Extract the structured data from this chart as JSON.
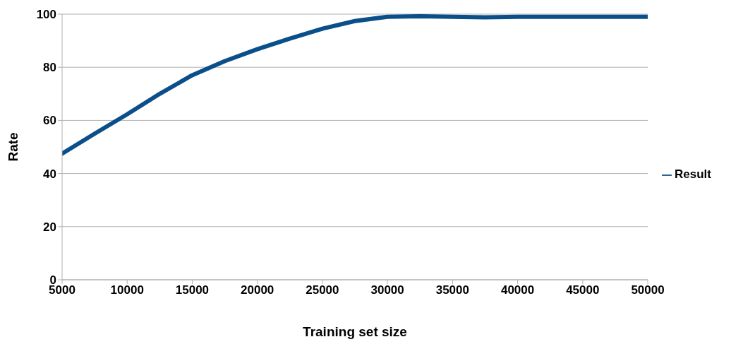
{
  "chart_data": {
    "type": "line",
    "xlabel": "Training set size",
    "ylabel": "Rate",
    "x": [
      5000,
      7500,
      10000,
      12500,
      15000,
      17500,
      20000,
      22500,
      25000,
      27500,
      30000,
      32500,
      35000,
      37500,
      40000,
      45000,
      50000
    ],
    "series": [
      {
        "name": "Result",
        "color": "#0b4f8a",
        "values": [
          47.5,
          55,
          62.3,
          70,
          77,
          82.3,
          86.8,
          90.8,
          94.5,
          97.4,
          99,
          99.2,
          99,
          98.8,
          99,
          99,
          99
        ]
      }
    ],
    "xlim": [
      5000,
      50000
    ],
    "xticks": [
      5000,
      10000,
      15000,
      20000,
      25000,
      30000,
      35000,
      40000,
      45000,
      50000
    ],
    "ylim": [
      0,
      100
    ],
    "yticks": [
      0,
      20,
      40,
      60,
      80,
      100
    ],
    "grid": "y",
    "legend": "right",
    "marker": "none",
    "line_style": "solid"
  }
}
